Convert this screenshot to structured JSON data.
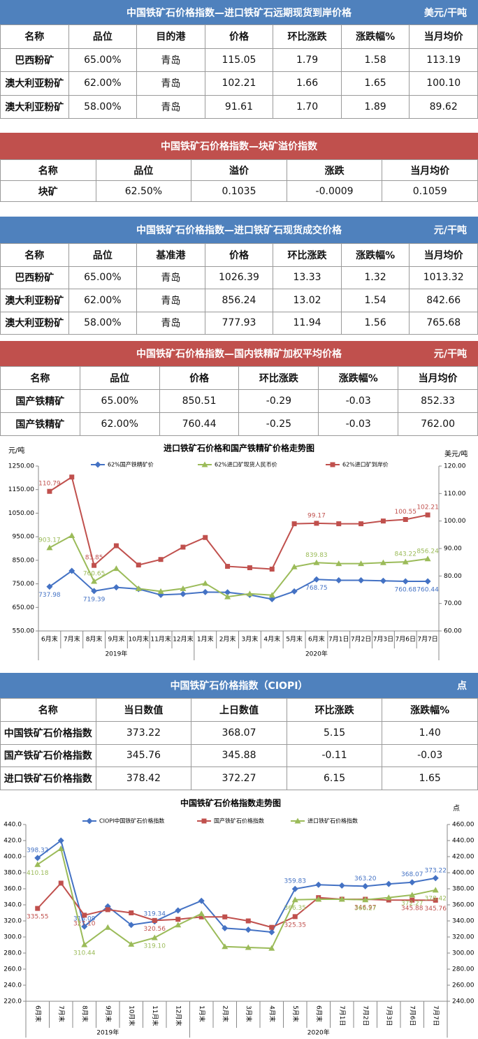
{
  "tables": [
    {
      "title": "中国铁矿石价格指数—进口铁矿石远期现货到岸价格",
      "unit": "美元/干吨",
      "header_color": "#4f81bd",
      "columns": [
        "名称",
        "品位",
        "目的港",
        "价格",
        "环比涨跌",
        "涨跌幅%",
        "当月均价"
      ],
      "rows": [
        [
          "巴西粉矿",
          "65.00%",
          "青岛",
          "115.05",
          "1.79",
          "1.58",
          "113.19"
        ],
        [
          "澳大利亚粉矿",
          "62.00%",
          "青岛",
          "102.21",
          "1.66",
          "1.65",
          "100.10"
        ],
        [
          "澳大利亚粉矿",
          "58.00%",
          "青岛",
          "91.61",
          "1.70",
          "1.89",
          "89.62"
        ]
      ]
    },
    {
      "title": "中国铁矿石价格指数—块矿溢价指数",
      "header_color": "#c0504d",
      "columns": [
        "名称",
        "品位",
        "溢价",
        "涨跌",
        "当月均价"
      ],
      "rows": [
        [
          "块矿",
          "62.50%",
          "0.1035",
          "-0.0009",
          "0.1059"
        ]
      ]
    },
    {
      "title": "中国铁矿石价格指数—进口铁矿石现货成交价格",
      "unit": "元/干吨",
      "header_color": "#4f81bd",
      "columns": [
        "名称",
        "品位",
        "基准港",
        "价格",
        "环比涨跌",
        "涨跌幅%",
        "当月均价"
      ],
      "rows": [
        [
          "巴西粉矿",
          "65.00%",
          "青岛",
          "1026.39",
          "13.33",
          "1.32",
          "1013.32"
        ],
        [
          "澳大利亚粉矿",
          "62.00%",
          "青岛",
          "856.24",
          "13.02",
          "1.54",
          "842.66"
        ],
        [
          "澳大利亚粉矿",
          "58.00%",
          "青岛",
          "777.93",
          "11.94",
          "1.56",
          "765.68"
        ]
      ]
    },
    {
      "title": "中国铁矿石价格指数—国内铁精矿加权平均价格",
      "unit": "元/干吨",
      "header_color": "#c0504d",
      "columns": [
        "名称",
        "品位",
        "价格",
        "环比涨跌",
        "涨跌幅%",
        "当月均价"
      ],
      "rows": [
        [
          "国产铁精矿",
          "65.00%",
          "850.51",
          "-0.29",
          "-0.03",
          "852.33"
        ],
        [
          "国产铁精矿",
          "62.00%",
          "760.44",
          "-0.25",
          "-0.03",
          "762.00"
        ]
      ]
    },
    {
      "title": "中国铁矿石价格指数（CIOPI）",
      "unit": "点",
      "header_color": "#4f81bd",
      "columns": [
        "名称",
        "当日数值",
        "上日数值",
        "环比涨跌",
        "涨跌幅%"
      ],
      "rows": [
        [
          "中国铁矿石价格指数",
          "373.22",
          "368.07",
          "5.15",
          "1.40"
        ],
        [
          "国产铁矿石价格指数",
          "345.76",
          "345.88",
          "-0.11",
          "-0.03"
        ],
        [
          "进口铁矿石价格指数",
          "378.42",
          "372.27",
          "6.15",
          "1.65"
        ]
      ]
    }
  ],
  "chart_data": [
    {
      "type": "line",
      "title": "进口铁矿石价格和国产铁精矿价格走势图",
      "ylabel": "元/吨",
      "y2label": "美元/吨",
      "category_groups": [
        {
          "group": "2019年",
          "labels": [
            "6月末",
            "7月末",
            "8月末",
            "9月末",
            "10月末",
            "11月末",
            "12月末"
          ]
        },
        {
          "group": "2020年",
          "labels": [
            "1月末",
            "2月末",
            "3月末",
            "4月末",
            "5月末",
            "6月末",
            "7月1日",
            "7月2日",
            "7月3日",
            "7月6日",
            "7月7日"
          ]
        }
      ],
      "ylim": [
        550,
        1250
      ],
      "yticks": [
        {
          "value": 550,
          "label": "550.00"
        },
        {
          "value": 650,
          "label": "650.00"
        },
        {
          "value": 750,
          "label": "750.00"
        },
        {
          "value": 850,
          "label": "850.00"
        },
        {
          "value": 950,
          "label": "950.00"
        },
        {
          "value": 1050,
          "label": "1050.00"
        },
        {
          "value": 1150,
          "label": "1150.00"
        },
        {
          "value": 1250,
          "label": "1250.00"
        }
      ],
      "y2lim": [
        60,
        120
      ],
      "y2ticks": [
        {
          "value": 60,
          "label": "60.00"
        },
        {
          "value": 70,
          "label": "70.00"
        },
        {
          "value": 80,
          "label": "80.00"
        },
        {
          "value": 90,
          "label": "90.00"
        },
        {
          "value": 100,
          "label": "100.00"
        },
        {
          "value": 110,
          "label": "110.00"
        },
        {
          "value": 120,
          "label": "120.00"
        }
      ],
      "legend": "top",
      "grid": false,
      "x_label_rotation": 0,
      "series": [
        {
          "name": "62%国产铁精矿价",
          "color": "#4472c4",
          "marker": "diamond",
          "label_position": "below",
          "values": [
            737.98,
            805,
            719.39,
            735,
            728,
            703,
            707,
            715,
            714,
            703,
            685,
            718,
            768.75,
            765,
            765,
            763,
            760.68,
            760.44
          ],
          "value_labels": [
            "737.98",
            null,
            "719.39",
            null,
            null,
            null,
            null,
            null,
            null,
            null,
            null,
            null,
            "768.75",
            null,
            null,
            null,
            "760.68",
            "760.44"
          ]
        },
        {
          "name": "62%进口矿现货人民币价",
          "color": "#9bbb59",
          "marker": "triangle",
          "label_position": "above",
          "values": [
            903.17,
            955,
            760.65,
            815,
            730,
            718,
            730,
            752,
            695,
            708,
            702,
            822,
            839.83,
            836,
            836,
            840,
            843.22,
            856.24
          ],
          "value_labels": [
            "903.17",
            null,
            "760.65",
            null,
            null,
            null,
            null,
            null,
            null,
            null,
            null,
            null,
            "839.83",
            null,
            null,
            null,
            "843.22",
            "856.24"
          ]
        },
        {
          "name": "62%进口矿到岸价",
          "color": "#c0504d",
          "marker": "square",
          "label_position": "above",
          "axis": "y2",
          "values": [
            110.79,
            116,
            83.85,
            91,
            84,
            86,
            90.5,
            94,
            83.5,
            83,
            82.5,
            99,
            99.17,
            99,
            99,
            100,
            100.55,
            102.21
          ],
          "value_labels": [
            "110.79",
            null,
            "83.85",
            null,
            null,
            null,
            null,
            null,
            null,
            null,
            null,
            null,
            "99.17",
            null,
            null,
            null,
            "100.55",
            "102.21"
          ]
        }
      ]
    },
    {
      "type": "line",
      "title": "中国铁矿石价格指数走势图",
      "y2label": "点",
      "category_groups": [
        {
          "group": "2019年",
          "labels": [
            "6月末",
            "7月末",
            "8月末",
            "9月末",
            "10月末",
            "11月末",
            "12月末"
          ]
        },
        {
          "group": "2020年",
          "labels": [
            "1月末",
            "2月末",
            "3月末",
            "4月末",
            "5月末",
            "6月末",
            "7月1日",
            "7月2日",
            "7月3日",
            "7月6日",
            "7月7日"
          ]
        }
      ],
      "ylim": [
        220,
        440
      ],
      "yticks": [
        {
          "value": 220,
          "label": "220.0"
        },
        {
          "value": 240,
          "label": "240.0"
        },
        {
          "value": 260,
          "label": "260.0"
        },
        {
          "value": 280,
          "label": "280.0"
        },
        {
          "value": 300,
          "label": "300.0"
        },
        {
          "value": 320,
          "label": "320.0"
        },
        {
          "value": 340,
          "label": "340.0"
        },
        {
          "value": 360,
          "label": "360.0"
        },
        {
          "value": 380,
          "label": "380.0"
        },
        {
          "value": 400,
          "label": "400.0"
        },
        {
          "value": 420,
          "label": "420.0"
        },
        {
          "value": 440,
          "label": "440.0"
        }
      ],
      "y2lim": [
        240,
        460
      ],
      "y2ticks": [
        {
          "value": 240,
          "label": "240.00"
        },
        {
          "value": 260,
          "label": "260.00"
        },
        {
          "value": 280,
          "label": "280.00"
        },
        {
          "value": 300,
          "label": "300.00"
        },
        {
          "value": 320,
          "label": "320.00"
        },
        {
          "value": 340,
          "label": "340.00"
        },
        {
          "value": 360,
          "label": "360.00"
        },
        {
          "value": 380,
          "label": "380.00"
        },
        {
          "value": 400,
          "label": "400.00"
        },
        {
          "value": 420,
          "label": "420.00"
        },
        {
          "value": 440,
          "label": "440.00"
        },
        {
          "value": 460,
          "label": "460.00"
        }
      ],
      "legend": "top",
      "grid": false,
      "x_label_rotation": 90,
      "series": [
        {
          "name": "CIOPI中国铁矿石价格指数",
          "color": "#4472c4",
          "marker": "diamond",
          "label_position": "above",
          "values": [
            398.32,
            420,
            313.09,
            338,
            315,
            319.34,
            333,
            345,
            311,
            309,
            306,
            359.83,
            365,
            364,
            363.2,
            366,
            368.07,
            373.22
          ],
          "value_labels": [
            "398.32",
            null,
            "313.09",
            null,
            null,
            "319.34",
            null,
            null,
            null,
            null,
            null,
            "359.83",
            null,
            null,
            "363.20",
            null,
            "368.07",
            "373.22"
          ]
        },
        {
          "name": "国产铁矿石价格指数",
          "color": "#c0504d",
          "marker": "square",
          "label_position": "below",
          "values": [
            335.55,
            367,
            327.1,
            334,
            330,
            320.56,
            322,
            325,
            325,
            320,
            312,
            325.35,
            349,
            347,
            346.97,
            346,
            345.88,
            345.76
          ],
          "value_labels": [
            "335.55",
            null,
            "327.10",
            null,
            null,
            "320.56",
            null,
            null,
            null,
            null,
            null,
            "325.35",
            null,
            null,
            "346.97",
            null,
            "345.88",
            "345.76"
          ]
        },
        {
          "name": "进口铁矿石价格指数",
          "color": "#9bbb59",
          "marker": "triangle",
          "label_position": "below",
          "axis": "y2",
          "values": [
            410.18,
            430,
            310.44,
            332,
            311,
            319.1,
            335,
            349,
            308,
            307,
            306,
            366.35,
            367,
            367,
            366.27,
            369,
            372.27,
            378.42
          ],
          "value_labels": [
            "410.18",
            null,
            "310.44",
            null,
            null,
            "319.10",
            null,
            null,
            null,
            null,
            null,
            "366.35",
            null,
            null,
            "366.27",
            null,
            "372.27",
            "378.42"
          ]
        }
      ]
    }
  ]
}
